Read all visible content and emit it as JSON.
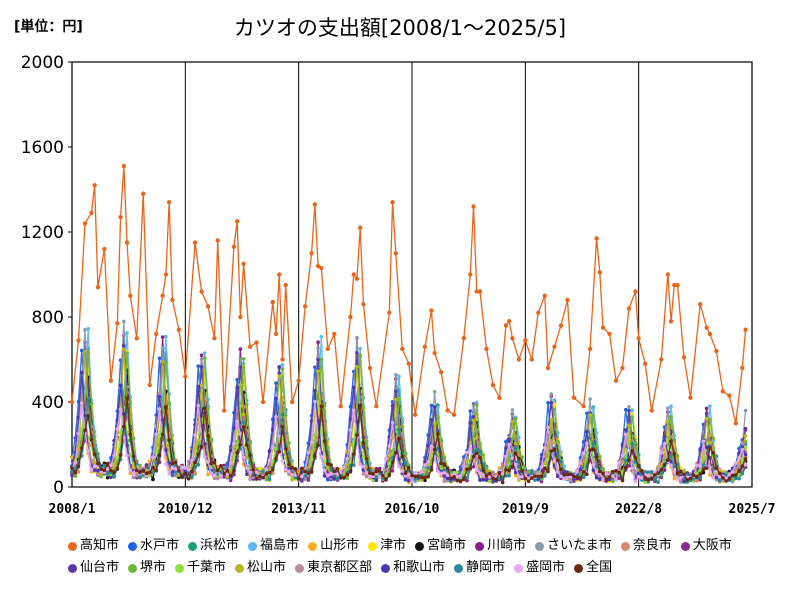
{
  "chart_data": {
    "type": "line",
    "title": "カツオの支出額[2008/1～2025/5]",
    "unit_label": "[単位：円]",
    "xlabel": "",
    "ylabel": "",
    "x_tick_labels": [
      "2008/1",
      "2010/12",
      "2013/11",
      "2016/10",
      "2019/9",
      "2022/8",
      "2025/7"
    ],
    "x_range": [
      "2008/1",
      "2025/7"
    ],
    "y_ticks": [
      0,
      400,
      800,
      1200,
      1600,
      2000
    ],
    "ylim": [
      0,
      2000
    ],
    "grid": "vertical",
    "legend_position": "bottom",
    "highlight_series": {
      "name": "高知市",
      "points": [
        [
          "2008/1",
          400
        ],
        [
          "2008/3",
          690
        ],
        [
          "2008/5",
          1240
        ],
        [
          "2008/7",
          1290
        ],
        [
          "2008/8",
          1420
        ],
        [
          "2008/9",
          940
        ],
        [
          "2008/11",
          1120
        ],
        [
          "2009/1",
          500
        ],
        [
          "2009/3",
          770
        ],
        [
          "2009/4",
          1270
        ],
        [
          "2009/5",
          1510
        ],
        [
          "2009/6",
          1150
        ],
        [
          "2009/7",
          900
        ],
        [
          "2009/9",
          700
        ],
        [
          "2009/11",
          1380
        ],
        [
          "2010/1",
          480
        ],
        [
          "2010/3",
          720
        ],
        [
          "2010/5",
          900
        ],
        [
          "2010/6",
          1000
        ],
        [
          "2010/7",
          1340
        ],
        [
          "2010/8",
          880
        ],
        [
          "2010/10",
          740
        ],
        [
          "2010/12",
          520
        ],
        [
          "2011/3",
          1150
        ],
        [
          "2011/5",
          920
        ],
        [
          "2011/7",
          850
        ],
        [
          "2011/9",
          700
        ],
        [
          "2011/10",
          1160
        ],
        [
          "2011/12",
          360
        ],
        [
          "2012/3",
          1130
        ],
        [
          "2012/4",
          1250
        ],
        [
          "2012/5",
          800
        ],
        [
          "2012/6",
          1050
        ],
        [
          "2012/8",
          660
        ],
        [
          "2012/10",
          680
        ],
        [
          "2012/12",
          400
        ],
        [
          "2013/3",
          870
        ],
        [
          "2013/4",
          720
        ],
        [
          "2013/5",
          1000
        ],
        [
          "2013/6",
          600
        ],
        [
          "2013/7",
          950
        ],
        [
          "2013/9",
          400
        ],
        [
          "2013/11",
          500
        ],
        [
          "2014/1",
          850
        ],
        [
          "2014/3",
          1100
        ],
        [
          "2014/4",
          1330
        ],
        [
          "2014/5",
          1040
        ],
        [
          "2014/6",
          1030
        ],
        [
          "2014/8",
          650
        ],
        [
          "2014/10",
          720
        ],
        [
          "2014/12",
          380
        ],
        [
          "2015/3",
          800
        ],
        [
          "2015/4",
          1000
        ],
        [
          "2015/5",
          980
        ],
        [
          "2015/6",
          1220
        ],
        [
          "2015/7",
          860
        ],
        [
          "2015/9",
          560
        ],
        [
          "2015/11",
          380
        ],
        [
          "2016/3",
          820
        ],
        [
          "2016/4",
          1340
        ],
        [
          "2016/5",
          1100
        ],
        [
          "2016/7",
          650
        ],
        [
          "2016/9",
          580
        ],
        [
          "2016/11",
          340
        ],
        [
          "2017/2",
          660
        ],
        [
          "2017/4",
          830
        ],
        [
          "2017/5",
          630
        ],
        [
          "2017/7",
          540
        ],
        [
          "2017/9",
          360
        ],
        [
          "2017/11",
          340
        ],
        [
          "2018/2",
          700
        ],
        [
          "2018/4",
          1000
        ],
        [
          "2018/5",
          1320
        ],
        [
          "2018/6",
          920
        ],
        [
          "2018/7",
          920
        ],
        [
          "2018/9",
          650
        ],
        [
          "2018/11",
          480
        ],
        [
          "2019/1",
          420
        ],
        [
          "2019/3",
          760
        ],
        [
          "2019/4",
          780
        ],
        [
          "2019/5",
          700
        ],
        [
          "2019/7",
          600
        ],
        [
          "2019/9",
          690
        ],
        [
          "2019/11",
          600
        ],
        [
          "2020/1",
          820
        ],
        [
          "2020/3",
          900
        ],
        [
          "2020/4",
          560
        ],
        [
          "2020/6",
          660
        ],
        [
          "2020/8",
          760
        ],
        [
          "2020/10",
          880
        ],
        [
          "2020/12",
          420
        ],
        [
          "2021/3",
          380
        ],
        [
          "2021/5",
          650
        ],
        [
          "2021/7",
          1170
        ],
        [
          "2021/8",
          1010
        ],
        [
          "2021/9",
          750
        ],
        [
          "2021/11",
          720
        ],
        [
          "2022/1",
          500
        ],
        [
          "2022/3",
          560
        ],
        [
          "2022/5",
          840
        ],
        [
          "2022/7",
          920
        ],
        [
          "2022/8",
          700
        ],
        [
          "2022/10",
          580
        ],
        [
          "2022/12",
          360
        ],
        [
          "2023/3",
          600
        ],
        [
          "2023/5",
          1000
        ],
        [
          "2023/6",
          780
        ],
        [
          "2023/7",
          950
        ],
        [
          "2023/8",
          950
        ],
        [
          "2023/10",
          610
        ],
        [
          "2023/12",
          420
        ],
        [
          "2024/3",
          860
        ],
        [
          "2024/5",
          750
        ],
        [
          "2024/6",
          720
        ],
        [
          "2024/8",
          640
        ],
        [
          "2024/10",
          450
        ],
        [
          "2024/12",
          430
        ],
        [
          "2025/2",
          300
        ],
        [
          "2025/4",
          560
        ],
        [
          "2025/5",
          740
        ]
      ]
    },
    "background_series": {
      "start": "2008/1",
      "note_months": "monthly values 2008/1 to 2025/5",
      "peak_month": 5,
      "peak_years": [
        2008,
        2009,
        2010,
        2011,
        2012,
        2013,
        2014,
        2015,
        2016,
        2017,
        2018,
        2019,
        2020,
        2021,
        2022,
        2023,
        2024,
        2025
      ],
      "peak_levels": [
        650,
        650,
        600,
        560,
        560,
        520,
        600,
        600,
        440,
        360,
        340,
        300,
        380,
        340,
        340,
        320,
        320,
        280
      ],
      "trough_levels": [
        80,
        70,
        70,
        70,
        60,
        60,
        60,
        60,
        50,
        50,
        50,
        50,
        50,
        50,
        50,
        50,
        50,
        50
      ]
    },
    "series": [
      {
        "name": "高知市",
        "color": "#e8651a"
      },
      {
        "name": "水戸市",
        "color": "#1f66e5"
      },
      {
        "name": "浜松市",
        "color": "#1aa078"
      },
      {
        "name": "福島市",
        "color": "#5ab8f0"
      },
      {
        "name": "山形市",
        "color": "#f0b020"
      },
      {
        "name": "津市",
        "color": "#ffe600"
      },
      {
        "name": "宮崎市",
        "color": "#111111"
      },
      {
        "name": "川崎市",
        "color": "#8b1a8b"
      },
      {
        "name": "さいたま市",
        "color": "#8a9aa8"
      },
      {
        "name": "奈良市",
        "color": "#d98a6a"
      },
      {
        "name": "大阪市",
        "color": "#8a2a8a"
      },
      {
        "name": "仙台市",
        "color": "#5a3aa8"
      },
      {
        "name": "堺市",
        "color": "#6ab83a"
      },
      {
        "name": "千葉市",
        "color": "#8ee03a"
      },
      {
        "name": "松山市",
        "color": "#b8b820"
      },
      {
        "name": "東京都区部",
        "color": "#b88a9a"
      },
      {
        "name": "和歌山市",
        "color": "#4a3ab0"
      },
      {
        "name": "静岡市",
        "color": "#2a8a9a"
      },
      {
        "name": "盛岡市",
        "color": "#e8a8f0"
      },
      {
        "name": "全国",
        "color": "#6a2a10"
      }
    ]
  }
}
